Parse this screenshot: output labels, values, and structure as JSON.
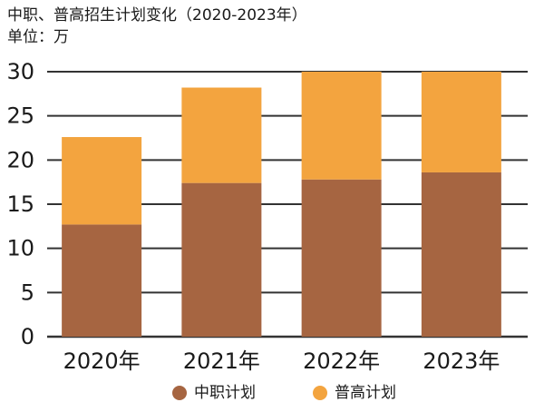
{
  "title": "中职、普高招生计划变化（2020-2023年）",
  "unit_label": "单位：万",
  "colors": {
    "vocational": "#A66541",
    "general": "#F3A43F",
    "grid": "#333333"
  },
  "chart_data": {
    "type": "bar",
    "stacked": true,
    "categories": [
      "2020年",
      "2021年",
      "2022年",
      "2023年"
    ],
    "series": [
      {
        "name": "中职计划",
        "values": [
          12.7,
          17.4,
          17.8,
          18.6
        ]
      },
      {
        "name": "普高计划",
        "values": [
          9.9,
          10.8,
          12.2,
          11.4
        ]
      }
    ],
    "ylim": [
      0,
      30
    ],
    "yticks": [
      0,
      5,
      10,
      15,
      20,
      25,
      30
    ],
    "grid": true,
    "legend_position": "bottom"
  }
}
